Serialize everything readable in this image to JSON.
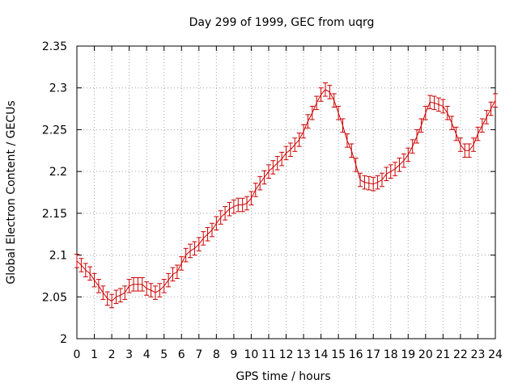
{
  "chart_data": {
    "type": "line",
    "title": "Day 299 of 1999, GEC from uqrg",
    "xlabel": "GPS time / hours",
    "ylabel": "Global Electron Content / GECUs",
    "xlim": [
      0,
      24
    ],
    "ylim": [
      2.0,
      2.35
    ],
    "x_ticks": [
      0,
      1,
      2,
      3,
      4,
      5,
      6,
      7,
      8,
      9,
      10,
      11,
      12,
      13,
      14,
      15,
      16,
      17,
      18,
      19,
      20,
      21,
      22,
      23,
      24
    ],
    "x_tick_labels": [
      "0",
      "1",
      "2",
      "3",
      "4",
      "5",
      "6",
      "7",
      "8",
      "9",
      "10",
      "11",
      "12",
      "13",
      "14",
      "15",
      "16",
      "17",
      "18",
      "19",
      "20",
      "21",
      "22",
      "23",
      "24"
    ],
    "y_ticks": [
      2.0,
      2.05,
      2.1,
      2.15,
      2.2,
      2.25,
      2.3,
      2.35
    ],
    "y_tick_labels": [
      "2",
      "2.05",
      "2.1",
      "2.15",
      "2.2",
      "2.25",
      "2.3",
      "2.35"
    ],
    "grid": true,
    "error": 0.008,
    "series_color": "#cc0000",
    "series": [
      {
        "name": "GEC",
        "x": [
          0,
          0.25,
          0.5,
          0.75,
          1,
          1.25,
          1.5,
          1.75,
          2,
          2.25,
          2.5,
          2.75,
          3,
          3.25,
          3.5,
          3.75,
          4,
          4.25,
          4.5,
          4.75,
          5,
          5.25,
          5.5,
          5.75,
          6,
          6.25,
          6.5,
          6.75,
          7,
          7.25,
          7.5,
          7.75,
          8,
          8.25,
          8.5,
          8.75,
          9,
          9.25,
          9.5,
          9.75,
          10,
          10.25,
          10.5,
          10.75,
          11,
          11.25,
          11.5,
          11.75,
          12,
          12.25,
          12.5,
          12.75,
          13,
          13.25,
          13.5,
          13.75,
          14,
          14.25,
          14.5,
          14.75,
          15,
          15.25,
          15.5,
          15.75,
          16,
          16.25,
          16.5,
          16.75,
          17,
          17.25,
          17.5,
          17.75,
          18,
          18.25,
          18.5,
          18.75,
          19,
          19.25,
          19.5,
          19.75,
          20,
          20.25,
          20.5,
          20.75,
          21,
          21.25,
          21.5,
          21.75,
          22,
          22.25,
          22.5,
          22.75,
          23,
          23.25,
          23.5,
          23.75,
          24
        ],
        "values": [
          2.093,
          2.088,
          2.082,
          2.078,
          2.07,
          2.063,
          2.055,
          2.048,
          2.045,
          2.05,
          2.052,
          2.055,
          2.063,
          2.065,
          2.065,
          2.065,
          2.06,
          2.058,
          2.055,
          2.058,
          2.063,
          2.07,
          2.077,
          2.08,
          2.09,
          2.1,
          2.105,
          2.108,
          2.113,
          2.12,
          2.125,
          2.13,
          2.138,
          2.145,
          2.15,
          2.155,
          2.158,
          2.16,
          2.16,
          2.162,
          2.168,
          2.178,
          2.186,
          2.193,
          2.2,
          2.205,
          2.21,
          2.215,
          2.222,
          2.226,
          2.232,
          2.238,
          2.248,
          2.26,
          2.27,
          2.282,
          2.292,
          2.298,
          2.295,
          2.285,
          2.27,
          2.255,
          2.237,
          2.225,
          2.208,
          2.19,
          2.187,
          2.186,
          2.185,
          2.187,
          2.19,
          2.197,
          2.2,
          2.203,
          2.208,
          2.213,
          2.22,
          2.23,
          2.242,
          2.255,
          2.27,
          2.283,
          2.282,
          2.28,
          2.278,
          2.27,
          2.258,
          2.245,
          2.232,
          2.225,
          2.225,
          2.232,
          2.245,
          2.255,
          2.265,
          2.275,
          2.285
        ]
      }
    ]
  }
}
